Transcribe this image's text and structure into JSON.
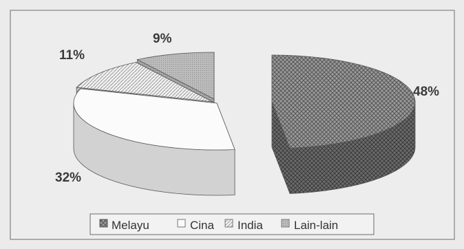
{
  "chart_data": {
    "type": "pie",
    "style": "exploded 3D pie (split into two halves)",
    "title": "",
    "categories": [
      "Melayu",
      "Cina",
      "India",
      "Lain-lain"
    ],
    "values": [
      48,
      32,
      11,
      9
    ],
    "data_labels": [
      "48%",
      "32%",
      "11%",
      "9%"
    ],
    "legend": {
      "placement": "bottom",
      "entries": [
        "Melayu",
        "Cina",
        "India",
        "Lain-lain"
      ]
    },
    "colors": {
      "background": "#ebebeb",
      "plot_border": "#6a6a6a",
      "Melayu": "#7a7a7a",
      "Cina": "#fafafa",
      "India": "#d8d8d8",
      "Lain-lain": "#bdbdbd"
    }
  }
}
